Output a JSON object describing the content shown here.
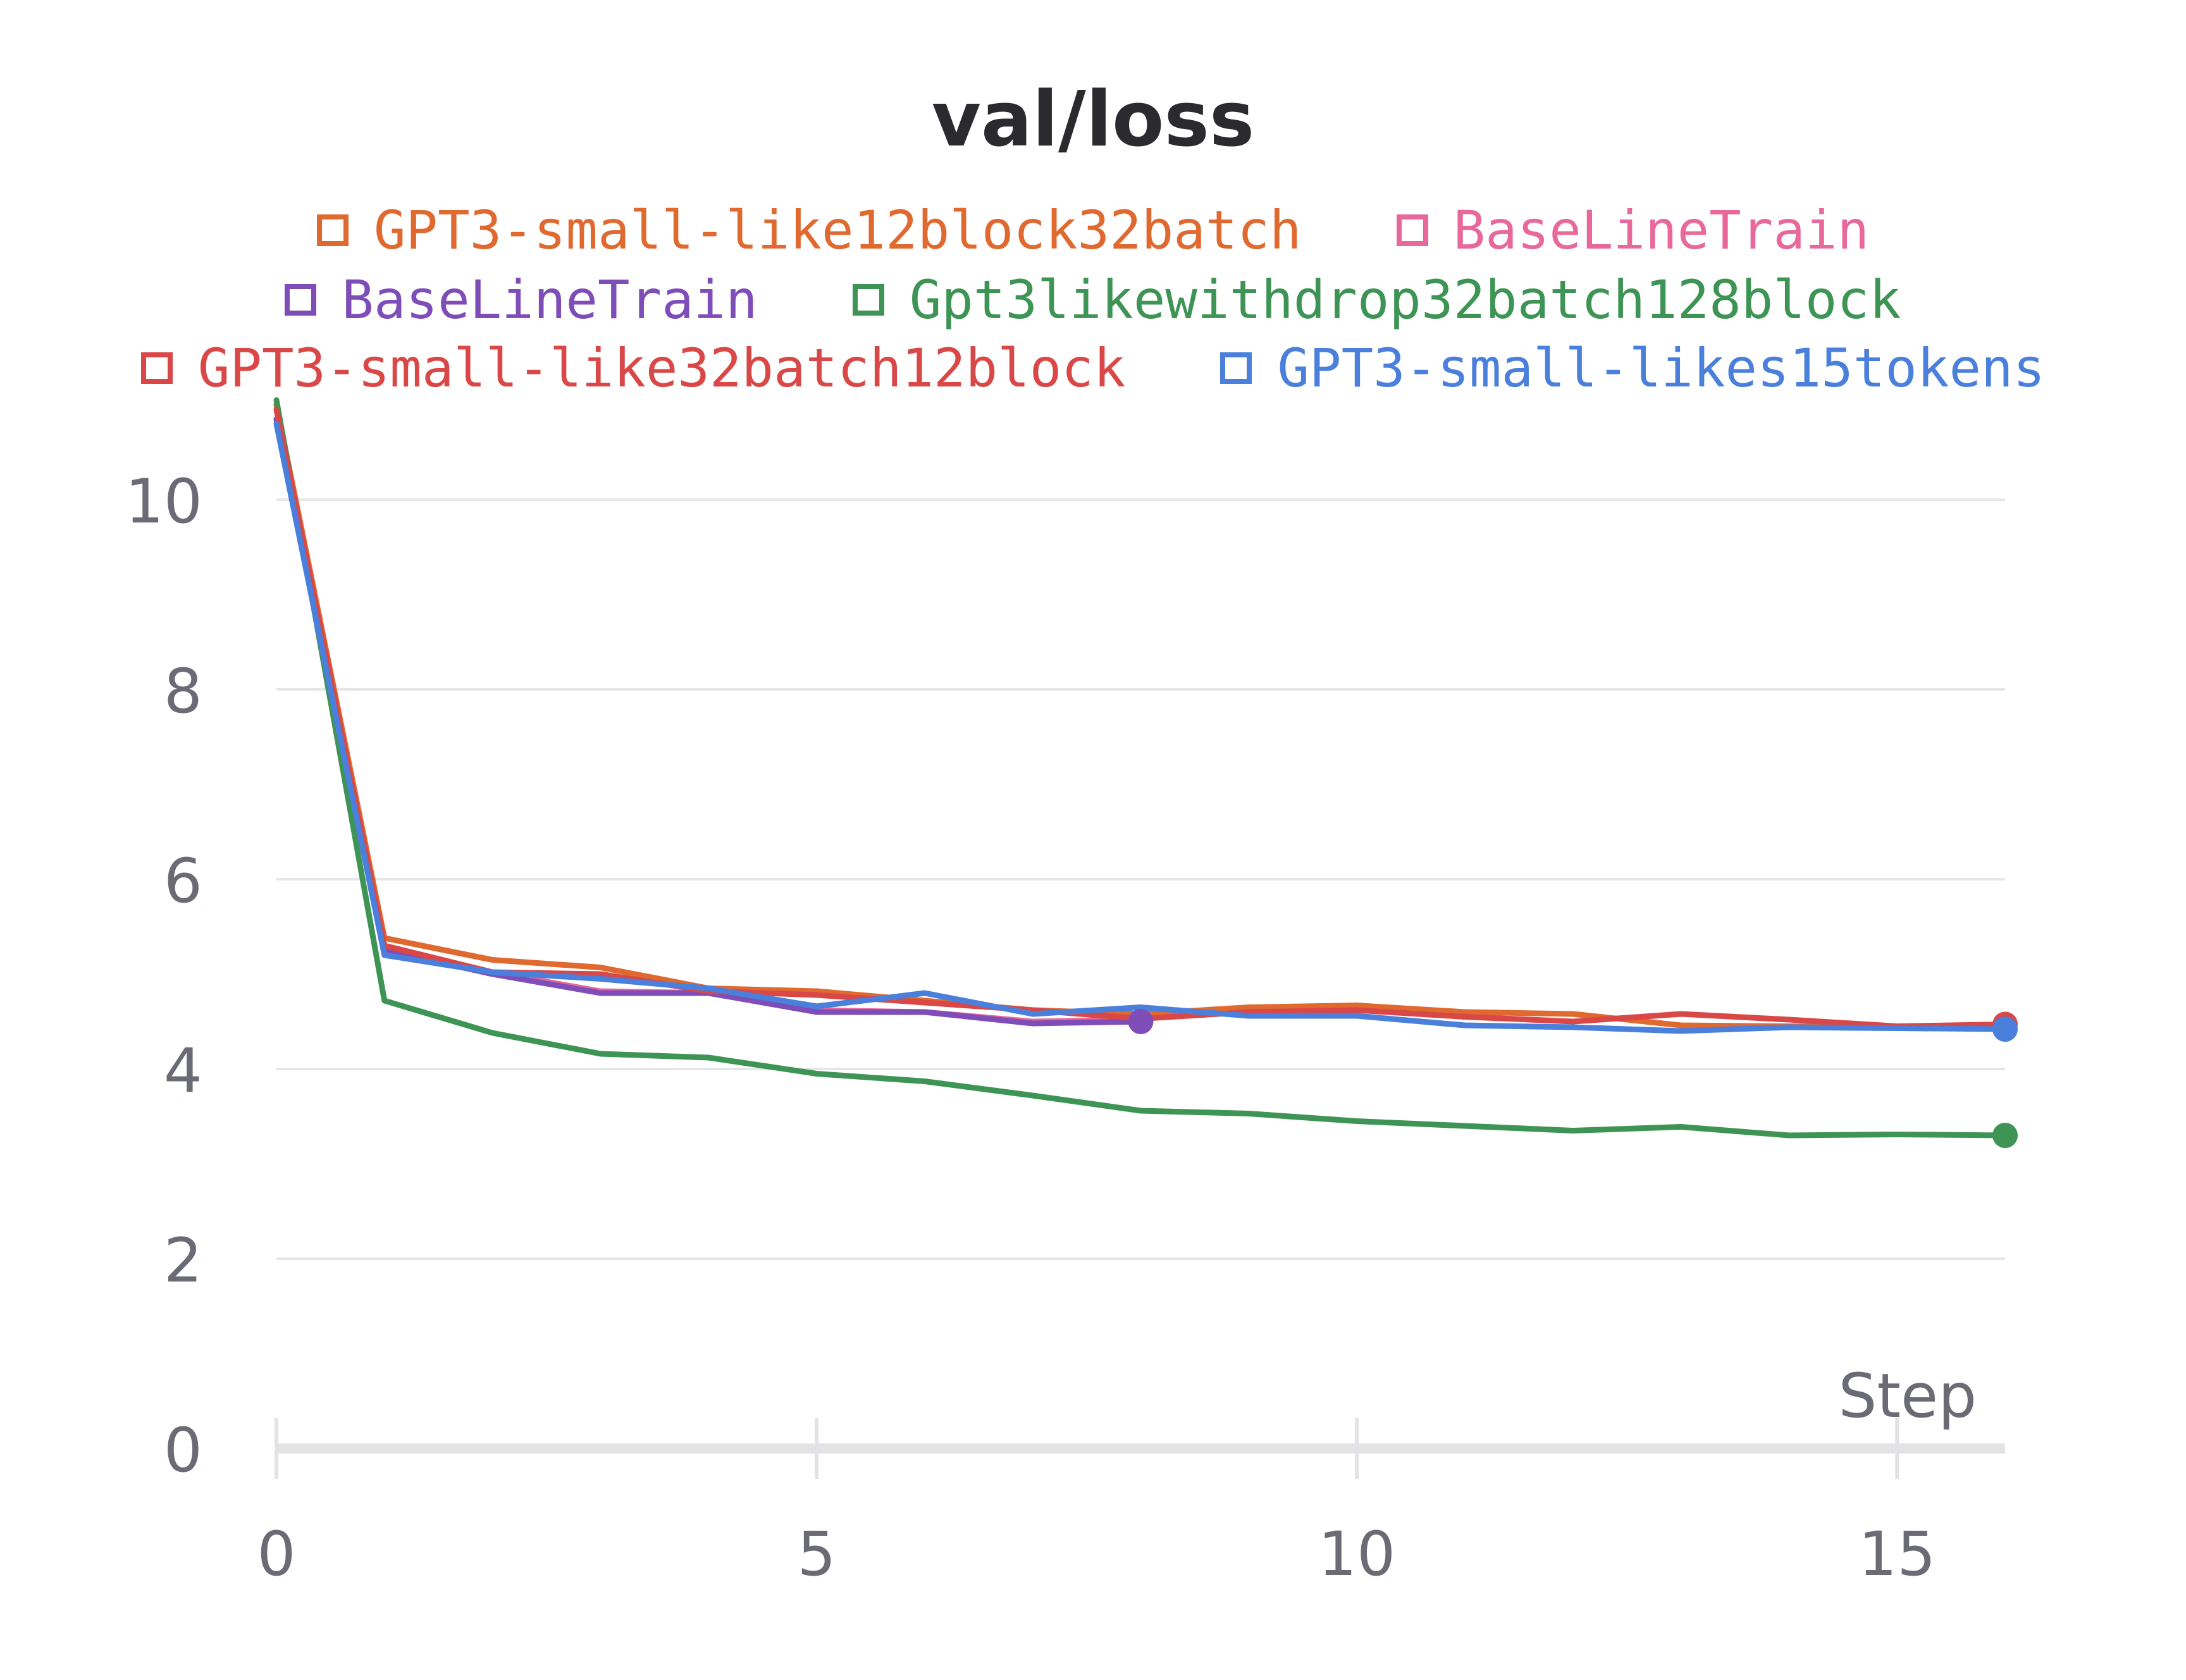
{
  "chart_data": {
    "type": "line",
    "title": "val/loss",
    "xlabel": "Step",
    "ylabel": "",
    "xlim": [
      0,
      16
    ],
    "ylim": [
      0,
      11
    ],
    "xticks": [
      0,
      5,
      10,
      15
    ],
    "yticks": [
      0,
      2,
      4,
      6,
      8,
      10
    ],
    "grid": "horizontal",
    "legend_position": "top",
    "series": [
      {
        "name": "GPT3-small-like12block32batch",
        "color": "#e0692f",
        "x": [
          0,
          1,
          2,
          3,
          4,
          5,
          6,
          7,
          8,
          9,
          10,
          11,
          12,
          13,
          14,
          15,
          16
        ],
        "y": [
          11.0,
          5.38,
          5.15,
          5.07,
          4.85,
          4.82,
          4.72,
          4.62,
          4.58,
          4.65,
          4.67,
          4.6,
          4.58,
          4.46,
          4.45,
          4.44,
          4.45
        ]
      },
      {
        "name": "BaseLineTrain",
        "color": "#e8689b",
        "x": [
          0,
          1,
          2,
          3,
          4,
          5,
          6,
          7,
          8
        ],
        "y": [
          10.85,
          5.25,
          5.02,
          4.82,
          4.8,
          4.62,
          4.6,
          4.5,
          4.52
        ]
      },
      {
        "name": "BaseLineTrain",
        "color": "#7e4db8",
        "x": [
          0,
          1,
          2,
          3,
          4,
          5,
          6,
          7,
          8
        ],
        "y": [
          10.85,
          5.25,
          5.0,
          4.8,
          4.8,
          4.6,
          4.6,
          4.48,
          4.5
        ]
      },
      {
        "name": "Gpt3likewithdrop32batch128block",
        "color": "#3e9454",
        "x": [
          0,
          1,
          2,
          3,
          4,
          5,
          6,
          7,
          8,
          9,
          10,
          11,
          12,
          13,
          14,
          15,
          16
        ],
        "y": [
          11.05,
          4.72,
          4.38,
          4.16,
          4.12,
          3.95,
          3.87,
          3.72,
          3.56,
          3.53,
          3.45,
          3.4,
          3.35,
          3.39,
          3.3,
          3.31,
          3.3
        ]
      },
      {
        "name": "GPT3-small-like32batch12block",
        "color": "#d94747",
        "x": [
          0,
          1,
          2,
          3,
          4,
          5,
          6,
          7,
          8,
          9,
          10,
          11,
          12,
          13,
          14,
          15,
          16
        ],
        "y": [
          10.95,
          5.3,
          5.02,
          5.0,
          4.82,
          4.78,
          4.7,
          4.62,
          4.53,
          4.6,
          4.62,
          4.55,
          4.5,
          4.58,
          4.52,
          4.45,
          4.47
        ]
      },
      {
        "name": "GPT3-small-likes15tokens",
        "color": "#4a7fdc",
        "x": [
          0,
          1,
          2,
          3,
          4,
          5,
          6,
          7,
          8,
          9,
          10,
          11,
          12,
          13,
          14,
          15,
          16
        ],
        "y": [
          10.8,
          5.2,
          5.02,
          4.95,
          4.85,
          4.66,
          4.8,
          4.58,
          4.65,
          4.56,
          4.56,
          4.46,
          4.44,
          4.4,
          4.44,
          4.43,
          4.42
        ]
      }
    ],
    "end_markers": [
      {
        "series": 2,
        "x": 8,
        "y": 4.5
      },
      {
        "series": 3,
        "x": 16,
        "y": 3.3
      },
      {
        "series": 4,
        "x": 16,
        "y": 4.47
      },
      {
        "series": 5,
        "x": 16,
        "y": 4.42
      }
    ]
  },
  "legend_rows": [
    [
      0,
      1
    ],
    [
      2,
      3
    ],
    [
      4,
      5
    ]
  ]
}
